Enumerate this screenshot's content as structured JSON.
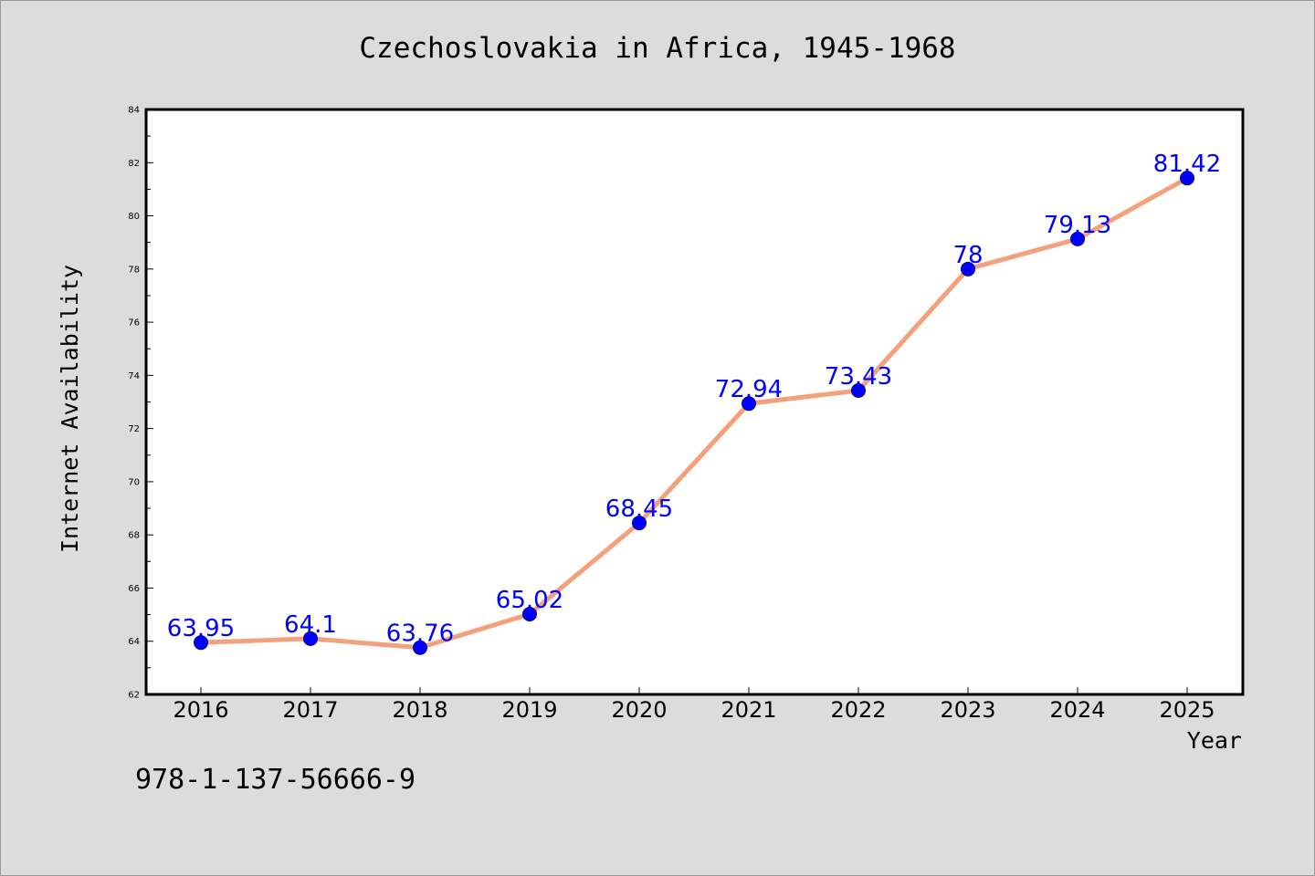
{
  "colors": {
    "background": "#dcdcdc",
    "plot_background": "#ffffff",
    "line": "#f4a07c",
    "marker": "#0000ff",
    "data_label": "#0000ff",
    "axis": "#000000"
  },
  "isbn_text": "978-1-137-56666-9",
  "chart_data": {
    "type": "line",
    "title": "Czechoslovakia in Africa, 1945-1968",
    "xlabel": "Year",
    "ylabel": "Internet Availability",
    "x": [
      "2016",
      "2017",
      "2018",
      "2019",
      "2020",
      "2021",
      "2022",
      "2023",
      "2024",
      "2025"
    ],
    "series": [
      {
        "values": [
          63.95,
          64.1,
          63.76,
          65.02,
          68.45,
          72.94,
          73.43,
          78,
          79.13,
          81.42
        ],
        "labels": [
          "63.95",
          "64.1",
          "63.76",
          "65.02",
          "68.45",
          "72.94",
          "73.43",
          "78",
          "79.13",
          "81.42"
        ]
      }
    ],
    "ylim": [
      62,
      84
    ],
    "yticks": [
      "62",
      "64",
      "66",
      "68",
      "70",
      "72",
      "74",
      "76",
      "78",
      "80",
      "82",
      "84"
    ],
    "grid": false,
    "legend": "none"
  }
}
